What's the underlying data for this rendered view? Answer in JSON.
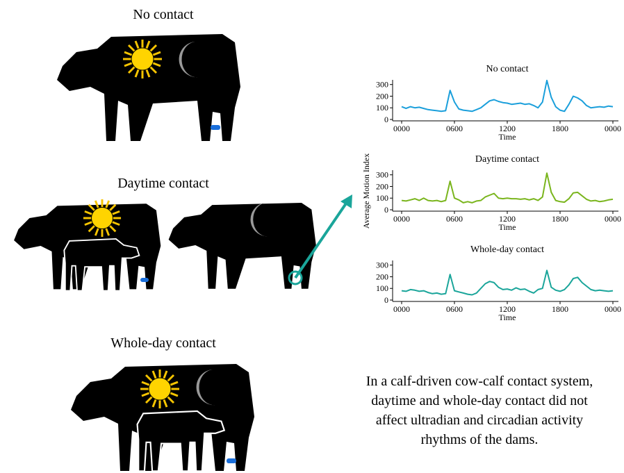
{
  "panels": [
    "No contact",
    "Daytime contact",
    "Whole-day contact"
  ],
  "caption": [
    "In a calf-driven cow-calf contact system,",
    "daytime and whole-day contact did not",
    "affect ultradian and circadian activity",
    "rhythms of the dams."
  ],
  "y_axis_label": "Average Motion Index",
  "chart_data": [
    {
      "type": "line",
      "title": "No contact",
      "x_label": "Time",
      "color": "#1a9fdb",
      "x": [
        0,
        0.5,
        1,
        1.5,
        2,
        2.5,
        3,
        3.5,
        4,
        4.5,
        5,
        5.5,
        6,
        6.5,
        7,
        7.5,
        8,
        8.5,
        9,
        9.5,
        10,
        10.5,
        11,
        11.5,
        12,
        12.5,
        13,
        13.5,
        14,
        14.5,
        15,
        15.5,
        16,
        16.5,
        17,
        17.5,
        18,
        18.5,
        19,
        19.5,
        20,
        20.5,
        21,
        21.5,
        22,
        22.5,
        23,
        23.5,
        24
      ],
      "values": [
        110,
        95,
        110,
        100,
        105,
        95,
        85,
        80,
        75,
        70,
        75,
        250,
        150,
        90,
        80,
        75,
        70,
        85,
        100,
        130,
        160,
        170,
        155,
        145,
        140,
        130,
        135,
        140,
        130,
        135,
        120,
        100,
        150,
        335,
        190,
        110,
        80,
        70,
        130,
        200,
        185,
        160,
        120,
        100,
        105,
        110,
        105,
        115,
        110
      ],
      "xlim": [
        0,
        24
      ],
      "xticks": [
        {
          "value": 0,
          "label": "0000"
        },
        {
          "value": 6,
          "label": "0600"
        },
        {
          "value": 12,
          "label": "1200"
        },
        {
          "value": 18,
          "label": "1800"
        },
        {
          "value": 24,
          "label": "0000"
        }
      ],
      "ylim": [
        0,
        340
      ],
      "yticks": [
        0,
        100,
        200,
        300
      ]
    },
    {
      "type": "line",
      "title": "Daytime contact",
      "x_label": "Time",
      "color": "#7ab51d",
      "x": [
        0,
        0.5,
        1,
        1.5,
        2,
        2.5,
        3,
        3.5,
        4,
        4.5,
        5,
        5.5,
        6,
        6.5,
        7,
        7.5,
        8,
        8.5,
        9,
        9.5,
        10,
        10.5,
        11,
        11.5,
        12,
        12.5,
        13,
        13.5,
        14,
        14.5,
        15,
        15.5,
        16,
        16.5,
        17,
        17.5,
        18,
        18.5,
        19,
        19.5,
        20,
        20.5,
        21,
        21.5,
        22,
        22.5,
        23,
        23.5,
        24
      ],
      "values": [
        80,
        75,
        85,
        95,
        80,
        100,
        80,
        75,
        80,
        70,
        80,
        245,
        100,
        85,
        60,
        70,
        60,
        75,
        80,
        110,
        125,
        140,
        100,
        95,
        100,
        95,
        95,
        90,
        95,
        85,
        95,
        80,
        110,
        315,
        150,
        80,
        70,
        65,
        95,
        145,
        150,
        120,
        90,
        75,
        80,
        70,
        75,
        85,
        90
      ],
      "xlim": [
        0,
        24
      ],
      "xticks": [
        {
          "value": 0,
          "label": "0000"
        },
        {
          "value": 6,
          "label": "0600"
        },
        {
          "value": 12,
          "label": "1200"
        },
        {
          "value": 18,
          "label": "1800"
        },
        {
          "value": 24,
          "label": "0000"
        }
      ],
      "ylim": [
        0,
        340
      ],
      "yticks": [
        0,
        100,
        200,
        300
      ]
    },
    {
      "type": "line",
      "title": "Whole-day contact",
      "x_label": "Time",
      "color": "#1aa59a",
      "x": [
        0,
        0.5,
        1,
        1.5,
        2,
        2.5,
        3,
        3.5,
        4,
        4.5,
        5,
        5.5,
        6,
        6.5,
        7,
        7.5,
        8,
        8.5,
        9,
        9.5,
        10,
        10.5,
        11,
        11.5,
        12,
        12.5,
        13,
        13.5,
        14,
        14.5,
        15,
        15.5,
        16,
        16.5,
        17,
        17.5,
        18,
        18.5,
        19,
        19.5,
        20,
        20.5,
        21,
        21.5,
        22,
        22.5,
        23,
        23.5,
        24
      ],
      "values": [
        80,
        75,
        90,
        85,
        75,
        80,
        65,
        55,
        60,
        50,
        55,
        220,
        80,
        70,
        60,
        50,
        45,
        60,
        100,
        140,
        160,
        150,
        110,
        90,
        95,
        85,
        105,
        90,
        95,
        75,
        60,
        90,
        100,
        255,
        110,
        85,
        75,
        90,
        130,
        185,
        195,
        150,
        120,
        90,
        80,
        85,
        80,
        75,
        80
      ],
      "xlim": [
        0,
        24
      ],
      "xticks": [
        {
          "value": 0,
          "label": "0000"
        },
        {
          "value": 6,
          "label": "0600"
        },
        {
          "value": 12,
          "label": "1200"
        },
        {
          "value": 18,
          "label": "1800"
        },
        {
          "value": 24,
          "label": "0000"
        }
      ],
      "ylim": [
        0,
        340
      ],
      "yticks": [
        0,
        100,
        200,
        300
      ]
    }
  ]
}
